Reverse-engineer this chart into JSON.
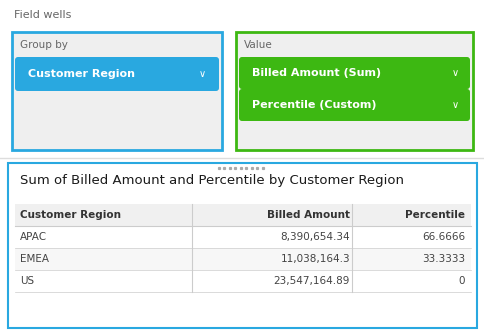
{
  "field_wells_label": "Field wells",
  "group_by_label": "Group by",
  "group_by_value": "Customer Region",
  "value_label": "Value",
  "value_items": [
    "Billed Amount (Sum)",
    "Percentile (Custom)"
  ],
  "table_title": "Sum of Billed Amount and Percentile by Customer Region",
  "col_headers": [
    "Customer Region",
    "Billed Amount",
    "Percentile"
  ],
  "rows": [
    [
      "APAC",
      "8,390,654.34",
      "66.6666"
    ],
    [
      "EMEA",
      "11,038,164.3",
      "33.3333"
    ],
    [
      "US",
      "23,547,164.89",
      "0"
    ]
  ],
  "bg_color": "#ffffff",
  "panel_bg": "#efefef",
  "blue_border": "#29a8e0",
  "green_border": "#3db812",
  "blue_fill": "#29a8e0",
  "green_fill": "#3db812",
  "dropdown_text_color": "#ffffff",
  "label_text_color": "#666666",
  "header_text_color": "#333333",
  "row_text_color": "#444444",
  "header_bg": "#f0f0f0",
  "row_alt_bg": "#f7f7f7",
  "row_bg": "#ffffff",
  "separator_color": "#cccccc",
  "table_border_color": "#29a8e0",
  "dots_color": "#aaaaaa",
  "divider_color": "#dddddd"
}
